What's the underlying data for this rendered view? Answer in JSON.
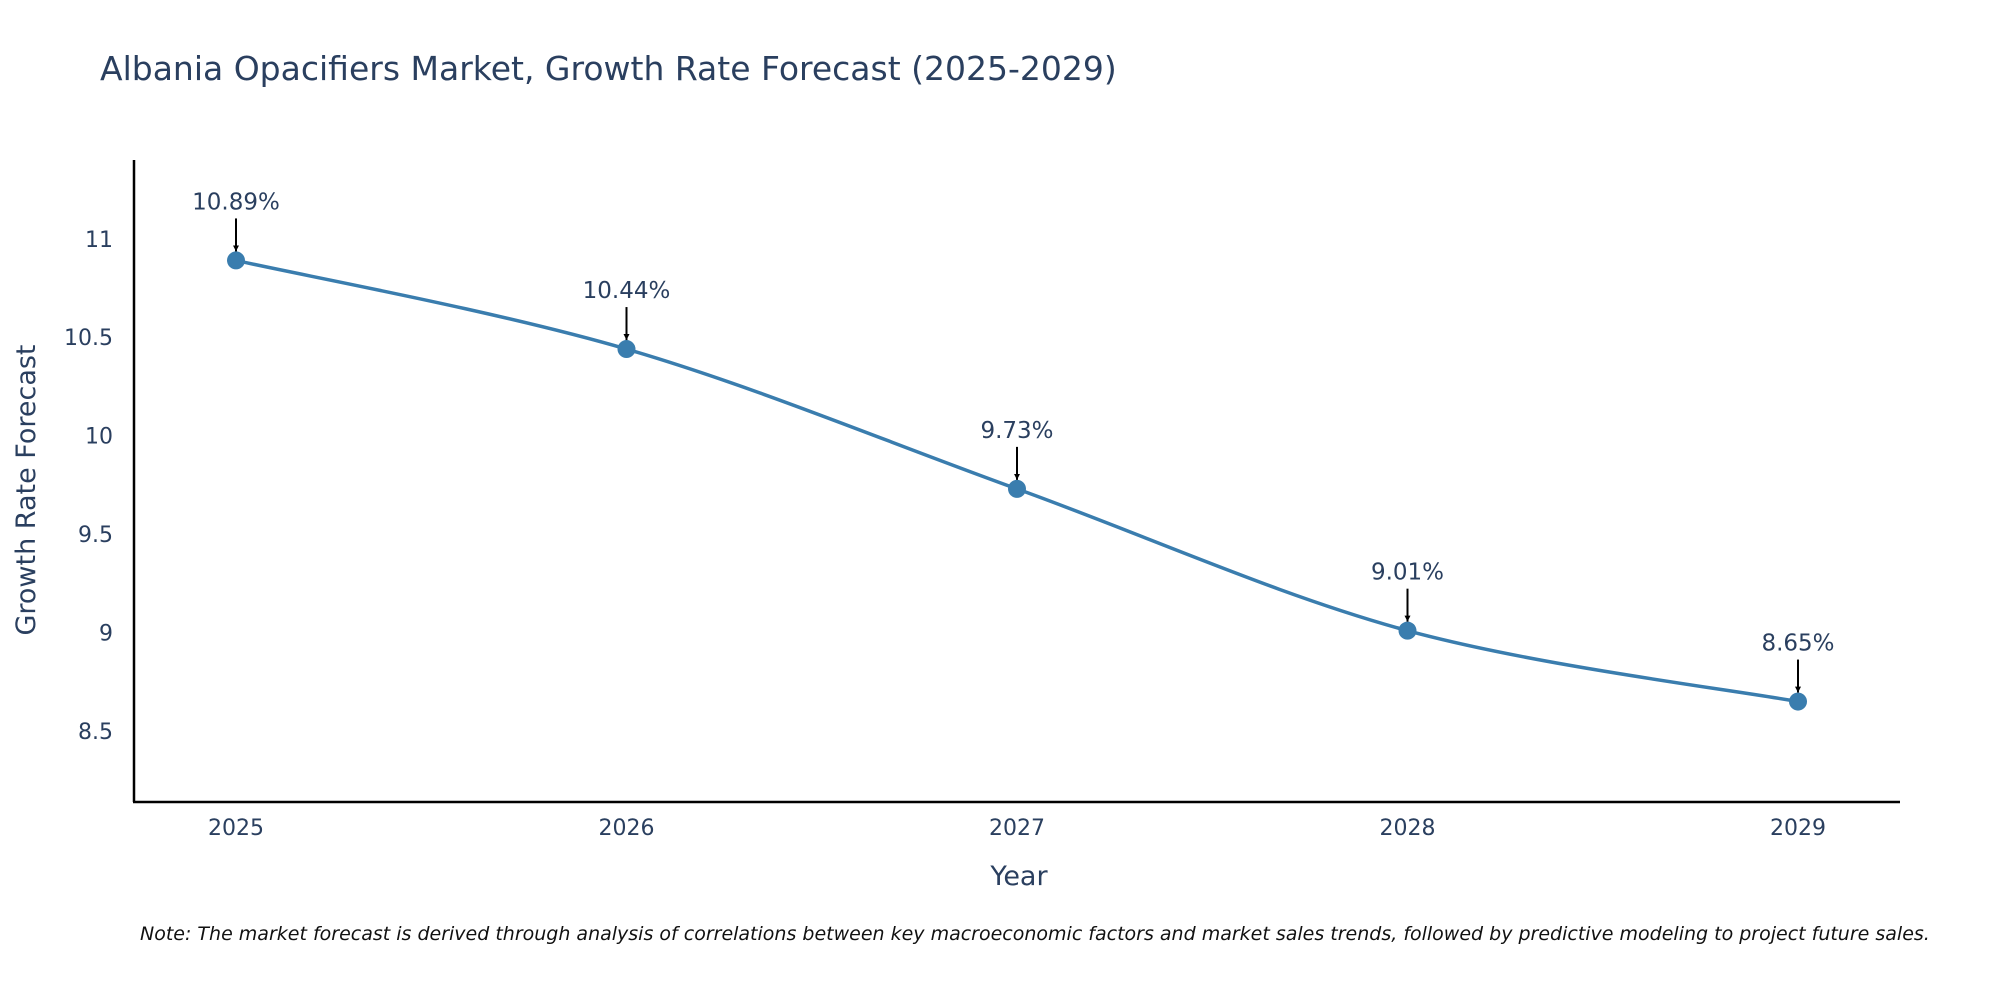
{
  "chart_data": {
    "type": "line",
    "title": "Albania Opacifiers Market, Growth Rate Forecast (2025-2029)",
    "xlabel": "Year",
    "ylabel": "Growth Rate Forecast",
    "categories": [
      "2025",
      "2026",
      "2027",
      "2028",
      "2029"
    ],
    "series": [
      {
        "name": "Growth Rate Forecast",
        "values": [
          10.89,
          10.44,
          9.73,
          9.01,
          8.65
        ],
        "labels": [
          "10.89%",
          "10.44%",
          "9.73%",
          "9.01%",
          "8.65%"
        ]
      }
    ],
    "yticks": [
      "8.5",
      "9",
      "9.5",
      "10",
      "10.5",
      "11"
    ],
    "ylim": [
      8.14,
      11.4
    ],
    "grid": false,
    "line_color": "#3a7dae",
    "line_shape": "spline",
    "note": "Note: The market forecast is derived through analysis of correlations between key macroeconomic factors and market sales trends, followed by predictive modeling to project future sales."
  }
}
